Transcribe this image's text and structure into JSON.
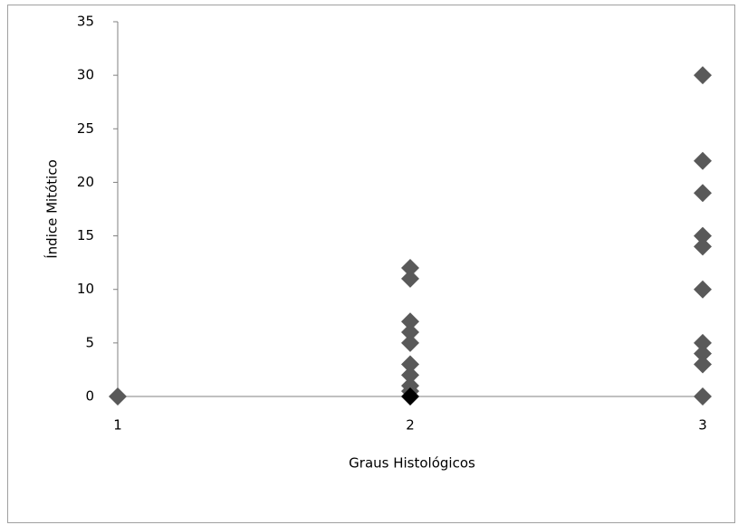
{
  "chart_data": {
    "type": "scatter",
    "x_label": "Graus Histológicos",
    "y_label": "Índice Mitótico",
    "xlim": [
      1,
      3
    ],
    "xticks": [
      1,
      2,
      3
    ],
    "ylim": [
      0,
      35
    ],
    "yticks": [
      0,
      5,
      10,
      15,
      20,
      25,
      30,
      35
    ],
    "series": [
      {
        "color": "#595959",
        "x": [
          1,
          2,
          2,
          2,
          2,
          2,
          2,
          2,
          2,
          2,
          3,
          3,
          3,
          3,
          3,
          3,
          3,
          3,
          3,
          3
        ],
        "values": [
          0,
          12,
          11,
          7,
          6,
          5,
          3,
          2,
          1,
          0.5,
          30,
          22,
          19,
          15,
          14,
          10,
          5,
          4,
          3,
          0
        ]
      },
      {
        "color": "#000000",
        "x": [
          2
        ],
        "values": [
          0
        ]
      }
    ]
  }
}
